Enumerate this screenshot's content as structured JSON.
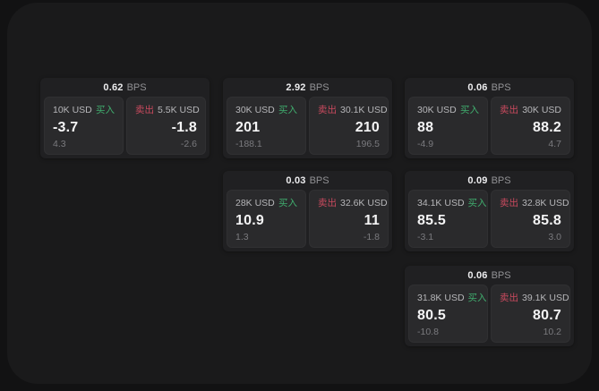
{
  "labels": {
    "bps": "BPS",
    "buy": "买入",
    "sell": "卖出"
  },
  "colors": {
    "buy_green": "#40ad6e",
    "sell_red": "#c94a5e",
    "panel_bg": "#1a1a1b",
    "card_bg": "#202022",
    "subpanel_bg": "#2a2a2c"
  },
  "cards": [
    {
      "bps": "0.62",
      "buy": {
        "amount": "10K USD",
        "value": "-3.7",
        "sub": "4.3"
      },
      "sell": {
        "amount": "5.5K USD",
        "value": "-1.8",
        "sub": "-2.6"
      }
    },
    {
      "bps": "2.92",
      "buy": {
        "amount": "30K USD",
        "value": "201",
        "sub": "-188.1"
      },
      "sell": {
        "amount": "30.1K USD",
        "value": "210",
        "sub": "196.5"
      }
    },
    {
      "bps": "0.06",
      "buy": {
        "amount": "30K USD",
        "value": "88",
        "sub": "-4.9"
      },
      "sell": {
        "amount": "30K USD",
        "value": "88.2",
        "sub": "4.7"
      }
    },
    {
      "bps": "0.03",
      "buy": {
        "amount": "28K USD",
        "value": "10.9",
        "sub": "1.3"
      },
      "sell": {
        "amount": "32.6K USD",
        "value": "11",
        "sub": "-1.8"
      }
    },
    {
      "bps": "0.09",
      "buy": {
        "amount": "34.1K USD",
        "value": "85.5",
        "sub": "-3.1"
      },
      "sell": {
        "amount": "32.8K USD",
        "value": "85.8",
        "sub": "3.0"
      }
    },
    {
      "bps": "0.06",
      "buy": {
        "amount": "31.8K USD",
        "value": "80.5",
        "sub": "-10.8"
      },
      "sell": {
        "amount": "39.1K USD",
        "value": "80.7",
        "sub": "10.2"
      }
    }
  ]
}
